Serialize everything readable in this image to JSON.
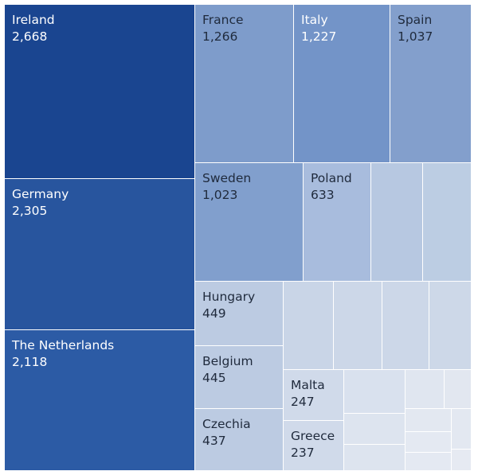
{
  "chart_data": {
    "type": "treemap",
    "title": "",
    "items": [
      {
        "name": "Ireland",
        "value": 2668,
        "value_label": "2,668",
        "color": "#1a4590"
      },
      {
        "name": "Germany",
        "value": 2305,
        "value_label": "2,305",
        "color": "#28559e"
      },
      {
        "name": "The Netherlands",
        "value": 2118,
        "value_label": "2,118",
        "color": "#2c5ba5"
      },
      {
        "name": "France",
        "value": 1266,
        "value_label": "1,266",
        "color": "#7e9ccb"
      },
      {
        "name": "Italy",
        "value": 1227,
        "value_label": "1,227",
        "color": "#7394c8"
      },
      {
        "name": "Spain",
        "value": 1037,
        "value_label": "1,037",
        "color": "#839fcc"
      },
      {
        "name": "Sweden",
        "value": 1023,
        "value_label": "1,023",
        "color": "#819fcd"
      },
      {
        "name": "Poland",
        "value": 633,
        "value_label": "633",
        "color": "#a8bcdd"
      },
      {
        "name": "Hungary",
        "value": 449,
        "value_label": "449",
        "color": "#bccbe2"
      },
      {
        "name": "Belgium",
        "value": 445,
        "value_label": "445",
        "color": "#bccbe2"
      },
      {
        "name": "Czechia",
        "value": 437,
        "value_label": "437",
        "color": "#bccbe2"
      },
      {
        "name": "Malta",
        "value": 247,
        "value_label": "247",
        "color": "#d0daea"
      },
      {
        "name": "Greece",
        "value": 237,
        "value_label": "237",
        "color": "#d0daea"
      },
      {
        "name": "",
        "value": null,
        "value_label": "",
        "color": "#b7c8e1"
      },
      {
        "name": "",
        "value": null,
        "value_label": "",
        "color": "#bccde3"
      },
      {
        "name": "",
        "value": null,
        "value_label": "",
        "color": "#c9d5e7"
      },
      {
        "name": "",
        "value": null,
        "value_label": "",
        "color": "#ccd7e8"
      },
      {
        "name": "",
        "value": null,
        "value_label": "",
        "color": "#ccd7e8"
      },
      {
        "name": "",
        "value": null,
        "value_label": "",
        "color": "#cdd8e8"
      },
      {
        "name": "",
        "value": null,
        "value_label": "",
        "color": "#d9e1ee"
      },
      {
        "name": "",
        "value": null,
        "value_label": "",
        "color": "#dde4ef"
      },
      {
        "name": "",
        "value": null,
        "value_label": "",
        "color": "#dde4ef"
      },
      {
        "name": "",
        "value": null,
        "value_label": "",
        "color": "#e0e6f0"
      },
      {
        "name": "",
        "value": null,
        "value_label": "",
        "color": "#e2e7f0"
      },
      {
        "name": "",
        "value": null,
        "value_label": "",
        "color": "#e3e8f1"
      },
      {
        "name": "",
        "value": null,
        "value_label": "",
        "color": "#e3e8f1"
      },
      {
        "name": "",
        "value": null,
        "value_label": "",
        "color": "#e4e9f2"
      },
      {
        "name": "",
        "value": null,
        "value_label": "",
        "color": "#e4e9f2"
      },
      {
        "name": "",
        "value": null,
        "value_label": "",
        "color": "#e6eaf2"
      }
    ]
  },
  "text_colors": {
    "dark_bg": "#ffffff",
    "light_bg": "#1f2a3c"
  }
}
